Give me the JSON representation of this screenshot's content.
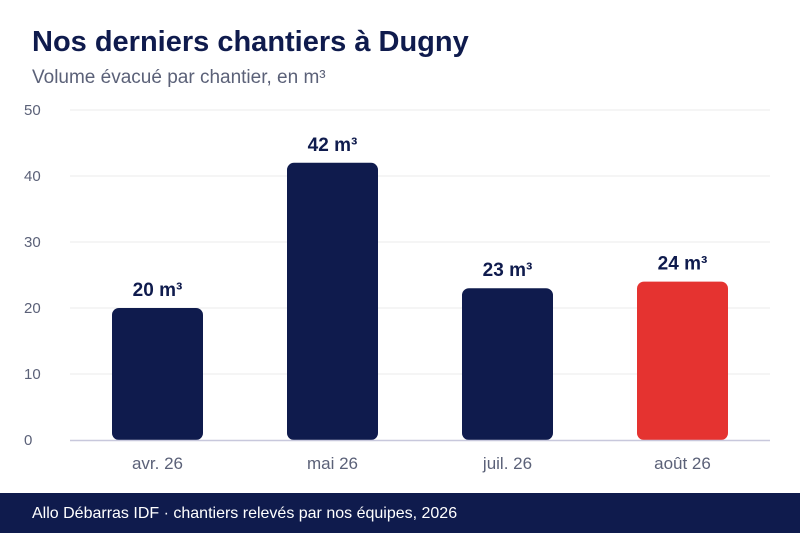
{
  "colors": {
    "bar": "#0f1b4d",
    "highlight": "#e53330",
    "grid": "#ebebeb",
    "axis_text": "#5b6178",
    "label_text": "#0f1b4d",
    "baseline": "#c8c8dc"
  },
  "footer": {
    "text": "Allo Débarras IDF · chantiers relevés par nos équipes, 2026"
  },
  "chart_data": {
    "type": "bar",
    "title": "Nos derniers chantiers à Dugny",
    "subtitle": "Volume évacué par chantier, en m³",
    "xlabel": "",
    "ylabel": "",
    "categories": [
      "avr. 26",
      "mai 26",
      "juil. 26",
      "août 26"
    ],
    "values": [
      20,
      42,
      23,
      24
    ],
    "value_labels": [
      "20 m³",
      "42 m³",
      "23 m³",
      "24 m³"
    ],
    "highlighted_category": "août 26",
    "ylim": [
      0,
      50
    ],
    "yticks": [
      0,
      10,
      20,
      30,
      40,
      50
    ],
    "grid": true,
    "legend": "none"
  }
}
